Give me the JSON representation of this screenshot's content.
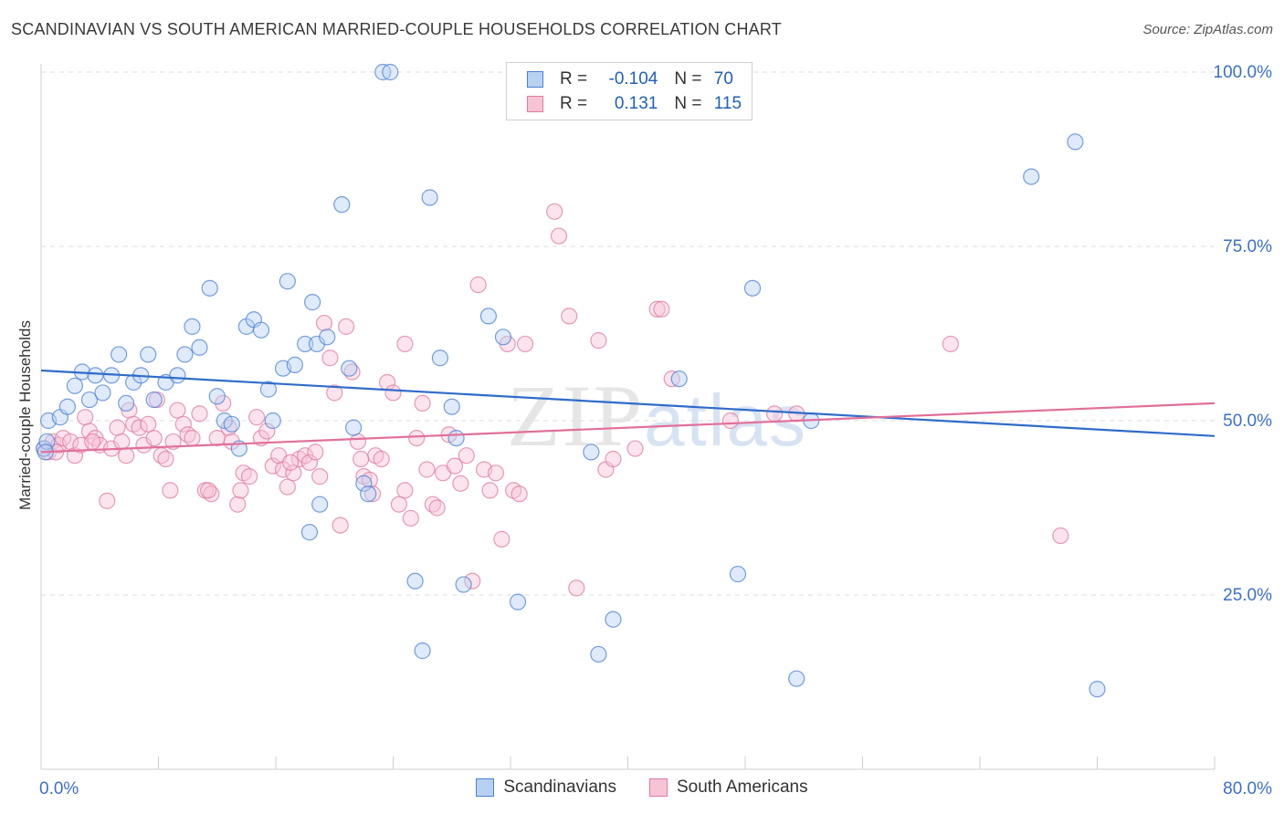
{
  "title": "SCANDINAVIAN VS SOUTH AMERICAN MARRIED-COUPLE HOUSEHOLDS CORRELATION CHART",
  "source": "Source: ZipAtlas.com",
  "watermark": {
    "zip": "ZIP",
    "atlas": "atlas"
  },
  "colors": {
    "blue": "#4a7fd4",
    "blue_fill": "#b8d1f3",
    "pink": "#e07aa0",
    "pink_fill": "#f7c4d6",
    "axis_text": "#3b6fc9",
    "grid": "#dddddd"
  },
  "legend": {
    "row1": {
      "r_label": "R = ",
      "r_value": "-0.104",
      "n_label": "N = ",
      "n_value": "70"
    },
    "row2": {
      "r_label": "R = ",
      "r_value": "0.131",
      "n_label": "N = ",
      "n_value": "115"
    }
  },
  "bottom_legend": {
    "series1": "Scandinavians",
    "series2": "South Americans"
  },
  "chart_data": {
    "type": "scatter",
    "title": "SCANDINAVIAN VS SOUTH AMERICAN MARRIED-COUPLE HOUSEHOLDS CORRELATION CHART",
    "ylabel": "Married-couple Households",
    "xlabel": "",
    "xlim": [
      0,
      80
    ],
    "ylim": [
      0,
      105
    ],
    "x_tick_labels": [
      {
        "value": 0,
        "label": "0.0%"
      },
      {
        "value": 80,
        "label": "80.0%"
      }
    ],
    "y_tick_labels": [
      {
        "value": 25,
        "label": "25.0%"
      },
      {
        "value": 50,
        "label": "50.0%"
      },
      {
        "value": 75,
        "label": "75.0%"
      },
      {
        "value": 100,
        "label": "100.0%"
      }
    ],
    "series": [
      {
        "name": "Scandinavians",
        "r": -0.104,
        "n": 70,
        "trend": {
          "x": [
            0,
            80
          ],
          "y": [
            57.2,
            47.8
          ]
        },
        "points": [
          [
            0.2,
            46
          ],
          [
            0.4,
            47
          ],
          [
            0.5,
            50
          ],
          [
            1.3,
            50.5
          ],
          [
            1.8,
            52
          ],
          [
            2.3,
            55
          ],
          [
            2.8,
            57
          ],
          [
            3.3,
            53
          ],
          [
            3.7,
            56.5
          ],
          [
            4.2,
            54
          ],
          [
            4.8,
            56.5
          ],
          [
            5.3,
            59.5
          ],
          [
            5.8,
            52.5
          ],
          [
            6.3,
            55.5
          ],
          [
            6.8,
            56.5
          ],
          [
            7.3,
            59.5
          ],
          [
            7.7,
            53
          ],
          [
            8.5,
            55.5
          ],
          [
            9.3,
            56.5
          ],
          [
            9.8,
            59.5
          ],
          [
            10.3,
            63.5
          ],
          [
            10.8,
            60.5
          ],
          [
            11.5,
            69
          ],
          [
            12.0,
            53.5
          ],
          [
            12.5,
            50
          ],
          [
            13.0,
            49.5
          ],
          [
            13.5,
            46
          ],
          [
            14.0,
            63.5
          ],
          [
            14.5,
            64.5
          ],
          [
            15.0,
            63
          ],
          [
            15.5,
            54.5
          ],
          [
            15.8,
            50
          ],
          [
            16.5,
            57.5
          ],
          [
            16.8,
            70
          ],
          [
            17.3,
            58
          ],
          [
            18.0,
            61
          ],
          [
            18.5,
            67
          ],
          [
            18.8,
            61
          ],
          [
            19.5,
            62
          ],
          [
            19.0,
            38
          ],
          [
            18.3,
            34
          ],
          [
            20.5,
            81
          ],
          [
            21.0,
            57.5
          ],
          [
            21.3,
            49
          ],
          [
            22.0,
            41
          ],
          [
            22.3,
            39.5
          ],
          [
            23.3,
            100
          ],
          [
            23.8,
            100
          ],
          [
            25.5,
            27
          ],
          [
            26.0,
            17
          ],
          [
            26.5,
            82
          ],
          [
            27.2,
            59
          ],
          [
            28.0,
            52
          ],
          [
            28.3,
            47.5
          ],
          [
            28.8,
            26.5
          ],
          [
            30.5,
            65
          ],
          [
            31.5,
            62
          ],
          [
            32.5,
            24
          ],
          [
            37.5,
            45.5
          ],
          [
            38,
            16.5
          ],
          [
            39.0,
            21.5
          ],
          [
            43.5,
            56
          ],
          [
            47.5,
            28
          ],
          [
            48.5,
            69
          ],
          [
            51.5,
            13
          ],
          [
            52.5,
            50
          ],
          [
            67.5,
            85
          ],
          [
            70.5,
            90
          ],
          [
            72,
            11.5
          ],
          [
            0.3,
            45.5
          ]
        ]
      },
      {
        "name": "South Americans",
        "r": 0.131,
        "n": 115,
        "trend": {
          "x": [
            0,
            80
          ],
          "y": [
            45.5,
            52.5
          ]
        },
        "points": [
          [
            0.2,
            46
          ],
          [
            0.5,
            45.5
          ],
          [
            0.8,
            47
          ],
          [
            1.2,
            46.5
          ],
          [
            1.5,
            47.5
          ],
          [
            2.0,
            47
          ],
          [
            2.3,
            45
          ],
          [
            2.7,
            46.5
          ],
          [
            3.0,
            50.5
          ],
          [
            3.3,
            48.5
          ],
          [
            3.7,
            47.5
          ],
          [
            4.0,
            46.5
          ],
          [
            4.5,
            38.5
          ],
          [
            4.8,
            46
          ],
          [
            5.2,
            49
          ],
          [
            5.5,
            47
          ],
          [
            6.0,
            51.5
          ],
          [
            6.3,
            49.5
          ],
          [
            6.7,
            49
          ],
          [
            7.0,
            46.5
          ],
          [
            7.3,
            49.5
          ],
          [
            7.7,
            47.5
          ],
          [
            8.2,
            45
          ],
          [
            8.5,
            44.5
          ],
          [
            8.8,
            40
          ],
          [
            9.3,
            51.5
          ],
          [
            9.7,
            49.5
          ],
          [
            10.0,
            48
          ],
          [
            10.3,
            47.5
          ],
          [
            10.8,
            51
          ],
          [
            11.2,
            40
          ],
          [
            11.6,
            39.5
          ],
          [
            12.0,
            47.5
          ],
          [
            12.4,
            52.5
          ],
          [
            12.8,
            49
          ],
          [
            13.0,
            47
          ],
          [
            13.4,
            38
          ],
          [
            13.8,
            42.5
          ],
          [
            14.2,
            42
          ],
          [
            14.7,
            50.5
          ],
          [
            15.0,
            47.5
          ],
          [
            15.4,
            48.5
          ],
          [
            15.8,
            43.5
          ],
          [
            16.2,
            45
          ],
          [
            16.5,
            43
          ],
          [
            16.8,
            40.5
          ],
          [
            17.2,
            42.5
          ],
          [
            17.6,
            44.5
          ],
          [
            18.0,
            45
          ],
          [
            18.3,
            44
          ],
          [
            18.7,
            45.5
          ],
          [
            19.0,
            42
          ],
          [
            19.3,
            64
          ],
          [
            19.7,
            59
          ],
          [
            20.0,
            54
          ],
          [
            20.4,
            35
          ],
          [
            20.8,
            63.5
          ],
          [
            21.2,
            57
          ],
          [
            21.6,
            47
          ],
          [
            22.0,
            42
          ],
          [
            22.4,
            41.5
          ],
          [
            22.8,
            45
          ],
          [
            23.2,
            44.5
          ],
          [
            23.6,
            55.5
          ],
          [
            24.0,
            54
          ],
          [
            24.4,
            38
          ],
          [
            24.8,
            40
          ],
          [
            25.2,
            36
          ],
          [
            25.6,
            47.5
          ],
          [
            26.0,
            52.5
          ],
          [
            26.3,
            43
          ],
          [
            26.7,
            38
          ],
          [
            27.0,
            37.5
          ],
          [
            27.4,
            42.5
          ],
          [
            27.8,
            48
          ],
          [
            28.2,
            43.5
          ],
          [
            28.6,
            41
          ],
          [
            29.0,
            45
          ],
          [
            29.4,
            27
          ],
          [
            29.8,
            69.5
          ],
          [
            30.2,
            43
          ],
          [
            30.6,
            40
          ],
          [
            31.0,
            42.5
          ],
          [
            31.4,
            33
          ],
          [
            31.8,
            61
          ],
          [
            32.2,
            40
          ],
          [
            32.6,
            39.5
          ],
          [
            33.0,
            61
          ],
          [
            35.0,
            80
          ],
          [
            35.3,
            76.5
          ],
          [
            36.0,
            65
          ],
          [
            36.5,
            26
          ],
          [
            38.0,
            61.5
          ],
          [
            38.5,
            43
          ],
          [
            39.0,
            44.5
          ],
          [
            40.5,
            46
          ],
          [
            42.0,
            66
          ],
          [
            42.3,
            66
          ],
          [
            43.0,
            56
          ],
          [
            47.0,
            50
          ],
          [
            50.0,
            51
          ],
          [
            51.5,
            51
          ],
          [
            62.0,
            61
          ],
          [
            69.5,
            33.5
          ],
          [
            24.8,
            61
          ],
          [
            21.8,
            44.5
          ],
          [
            13.6,
            40
          ],
          [
            7.9,
            53
          ],
          [
            5.8,
            45
          ],
          [
            3.5,
            47
          ],
          [
            1.0,
            45.5
          ],
          [
            11.4,
            40
          ],
          [
            17.0,
            44
          ],
          [
            22.6,
            39.5
          ],
          [
            9.0,
            47
          ]
        ]
      }
    ]
  }
}
